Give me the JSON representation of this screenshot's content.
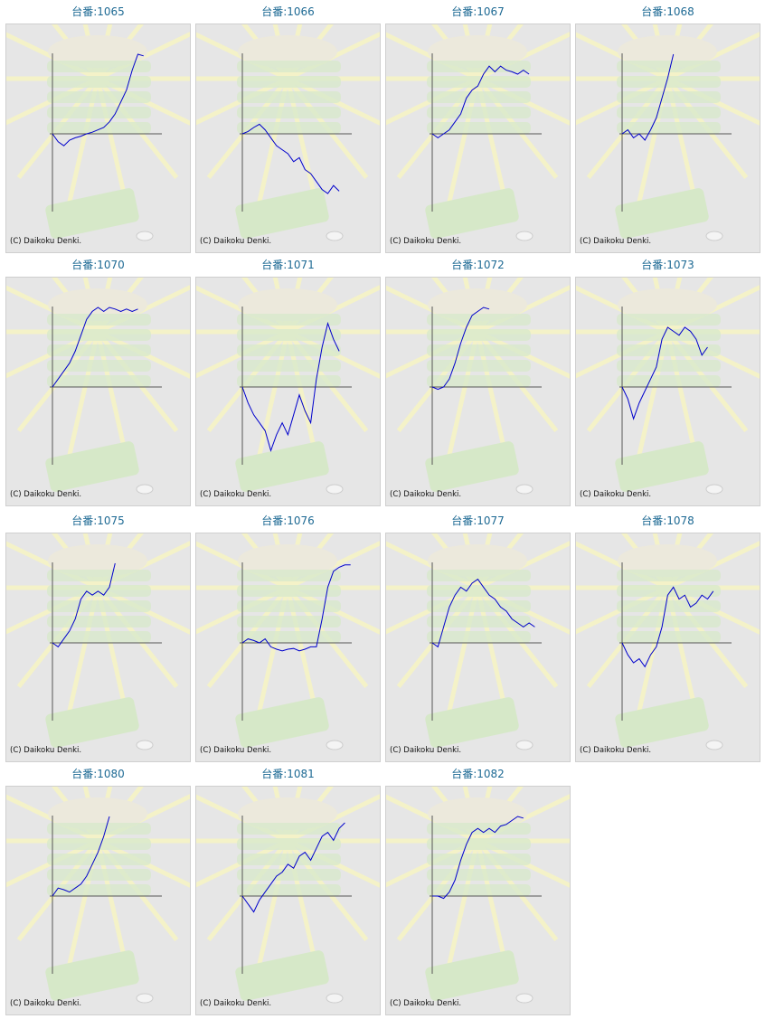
{
  "ylim": [
    -100,
    100
  ],
  "panels": [
    {
      "title": "台番:1065",
      "credit": "(C) Daikoku Denki.",
      "values": [
        0,
        -10,
        -15,
        -8,
        -5,
        -3,
        0,
        2,
        5,
        8,
        15,
        25,
        40,
        55,
        80,
        100,
        98
      ]
    },
    {
      "title": "台番:1066",
      "credit": "(C) Daikoku Denki.",
      "values": [
        0,
        3,
        8,
        12,
        5,
        -5,
        -15,
        -20,
        -25,
        -35,
        -30,
        -45,
        -50,
        -60,
        -70,
        -75,
        -65,
        -72
      ]
    },
    {
      "title": "台番:1067",
      "credit": "(C) Daikoku Denki.",
      "values": [
        0,
        -5,
        0,
        5,
        15,
        25,
        45,
        55,
        60,
        75,
        85,
        78,
        85,
        80,
        78,
        75,
        80,
        75
      ]
    },
    {
      "title": "台番:1068",
      "credit": "(C) Daikoku Denki.",
      "values": [
        0,
        5,
        -5,
        0,
        -8,
        5,
        20,
        45,
        70,
        100
      ]
    },
    {
      "title": "台番:1070",
      "credit": "(C) Daikoku Denki.",
      "values": [
        0,
        10,
        20,
        30,
        45,
        65,
        85,
        95,
        100,
        95,
        100,
        98,
        95,
        98,
        95,
        98
      ]
    },
    {
      "title": "台番:1071",
      "credit": "(C) Daikoku Denki.",
      "values": [
        0,
        -20,
        -35,
        -45,
        -55,
        -80,
        -60,
        -45,
        -60,
        -35,
        -10,
        -30,
        -45,
        10,
        50,
        80,
        60,
        45
      ]
    },
    {
      "title": "台番:1072",
      "credit": "(C) Daikoku Denki.",
      "values": [
        0,
        -3,
        0,
        10,
        30,
        55,
        75,
        90,
        95,
        100,
        98
      ]
    },
    {
      "title": "台番:1073",
      "credit": "(C) Daikoku Denki.",
      "values": [
        0,
        -15,
        -40,
        -20,
        -5,
        10,
        25,
        60,
        75,
        70,
        65,
        75,
        70,
        60,
        40,
        50
      ]
    },
    {
      "title": "台番:1075",
      "credit": "(C) Daikoku Denki.",
      "values": [
        0,
        -5,
        5,
        15,
        30,
        55,
        65,
        60,
        65,
        60,
        70,
        100
      ]
    },
    {
      "title": "台番:1076",
      "credit": "(C) Daikoku Denki.",
      "values": [
        0,
        5,
        3,
        0,
        5,
        -5,
        -8,
        -10,
        -8,
        -7,
        -10,
        -8,
        -5,
        -5,
        30,
        70,
        90,
        95,
        98,
        98
      ]
    },
    {
      "title": "台番:1077",
      "credit": "(C) Daikoku Denki.",
      "values": [
        0,
        -5,
        20,
        45,
        60,
        70,
        65,
        75,
        80,
        70,
        60,
        55,
        45,
        40,
        30,
        25,
        20,
        25,
        20
      ]
    },
    {
      "title": "台番:1078",
      "credit": "(C) Daikoku Denki.",
      "values": [
        0,
        -15,
        -25,
        -20,
        -30,
        -15,
        -5,
        20,
        60,
        70,
        55,
        60,
        45,
        50,
        60,
        55,
        65
      ]
    },
    {
      "title": "台番:1080",
      "credit": "(C) Daikoku Denki.",
      "values": [
        0,
        10,
        8,
        5,
        10,
        15,
        25,
        40,
        55,
        75,
        100
      ]
    },
    {
      "title": "台番:1081",
      "credit": "(C) Daikoku Denki.",
      "values": [
        0,
        -10,
        -20,
        -5,
        5,
        15,
        25,
        30,
        40,
        35,
        50,
        55,
        45,
        60,
        75,
        80,
        70,
        85,
        92
      ]
    },
    {
      "title": "台番:1082",
      "credit": "(C) Daikoku Denki.",
      "values": [
        0,
        0,
        -3,
        5,
        20,
        45,
        65,
        80,
        85,
        80,
        85,
        80,
        88,
        90,
        95,
        100,
        98
      ]
    }
  ]
}
